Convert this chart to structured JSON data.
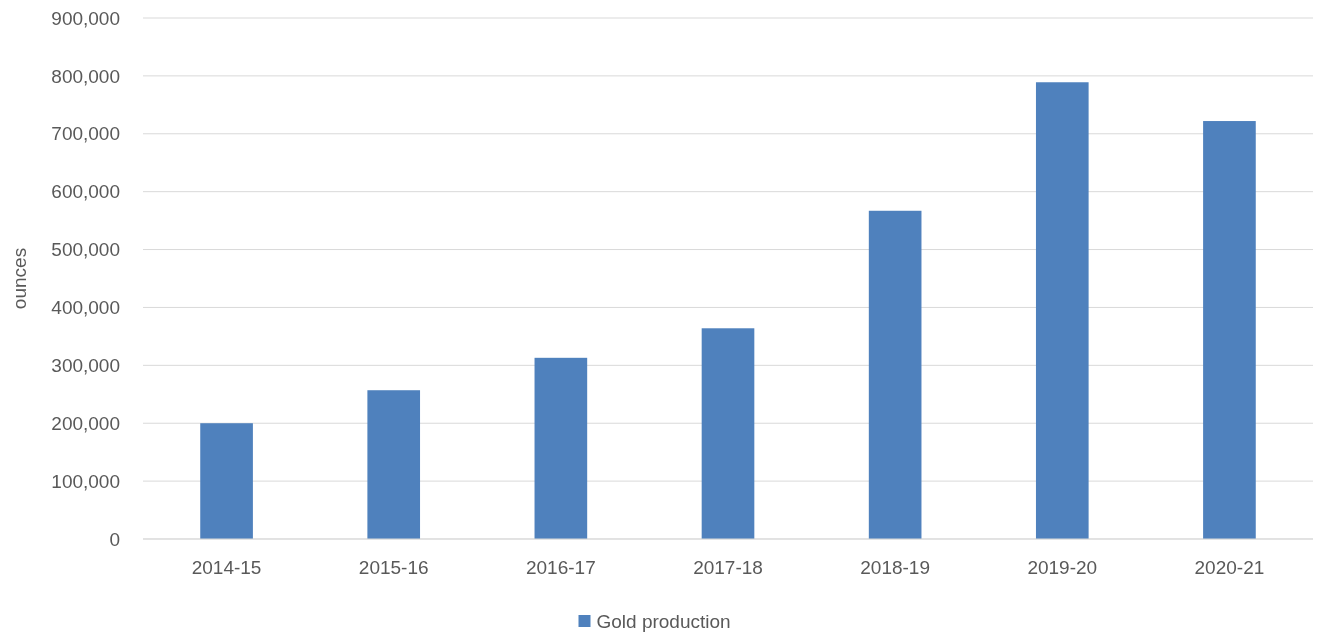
{
  "chart_data": {
    "type": "bar",
    "ylabel": "ounces",
    "categories": [
      "2014-15",
      "2015-16",
      "2016-17",
      "2017-18",
      "2018-19",
      "2019-20",
      "2020-21"
    ],
    "series": [
      {
        "name": "Gold production",
        "color": "#4f81bd",
        "values": [
          200000,
          257000,
          313000,
          364000,
          567000,
          789000,
          722000
        ]
      }
    ],
    "ylim": [
      0,
      900000
    ],
    "yticks": [
      {
        "value": 0,
        "label": "0"
      },
      {
        "value": 100000,
        "label": "100,000"
      },
      {
        "value": 200000,
        "label": "200,000"
      },
      {
        "value": 300000,
        "label": "300,000"
      },
      {
        "value": 400000,
        "label": "400,000"
      },
      {
        "value": 500000,
        "label": "500,000"
      },
      {
        "value": 600000,
        "label": "600,000"
      },
      {
        "value": 700000,
        "label": "700,000"
      },
      {
        "value": 800000,
        "label": "800,000"
      },
      {
        "value": 900000,
        "label": "900,000"
      }
    ],
    "grid": "y",
    "legend": "bottom"
  }
}
